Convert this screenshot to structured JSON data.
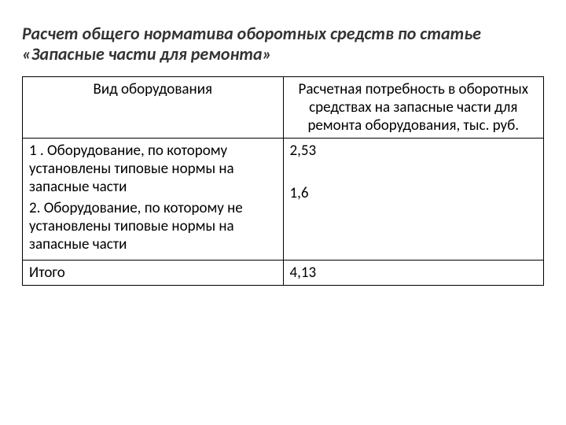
{
  "title": "Расчет общего норматива оборотных средств по статье «Запасные части для ремонта»",
  "title_fontsize": 22,
  "title_color": "#333333",
  "table": {
    "border_color": "#000000",
    "cell_fontsize": 19,
    "text_color": "#000000",
    "columns": [
      {
        "header": "Вид оборудования",
        "width_pct": 50,
        "align": "center"
      },
      {
        "header": "Расчетная потребность в оборотных средствах на запасные части для ремонта оборудования, тыс. руб.",
        "width_pct": 50,
        "align": "center"
      }
    ],
    "body_rows": [
      {
        "left_paragraphs": [
          "1 . Оборудование, по которому установлены типовые нормы на запасные части",
          "2. Оборудование, по которому не установлены типовые нормы на запасные части"
        ],
        "right_paragraphs": [
          "2,53",
          "",
          "1,6"
        ]
      }
    ],
    "footer_row": {
      "left": "Итого",
      "right": "4,13"
    }
  },
  "background_color": "#ffffff"
}
